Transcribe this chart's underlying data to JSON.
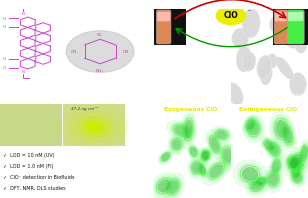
{
  "bg_color": "#ffffff",
  "pink_bg": "#fce8e8",
  "light_green_bg": "#d8edcc",
  "bullet_bg": "#e8f0d8",
  "bullet_points": [
    "✓  LOD = 10 nM (UV)",
    "✓  LOD = 1.0 nM (FI)",
    "✓  ClO⁻ detection in Biofluids",
    "✓  DFT, NMR, DLS studies"
  ],
  "exogeneous_label": "Exogeneous ClO⁻",
  "endogeneous_label": "Endogeneous ClO⁻",
  "clo_label": "ClO",
  "surface_density": "37.2 ng cm⁻²",
  "molecule_color": "#cc44cc",
  "arrow_color_red": "#cc0000",
  "arrow_color_green": "#009900",
  "clo_bg": "#e8f000",
  "label_color": "#e8e800",
  "sem1_bg": "#909090",
  "sem2_bg": "#a0a0a0",
  "cell_green": "#22dd22",
  "cell_green_dark": "#009900"
}
